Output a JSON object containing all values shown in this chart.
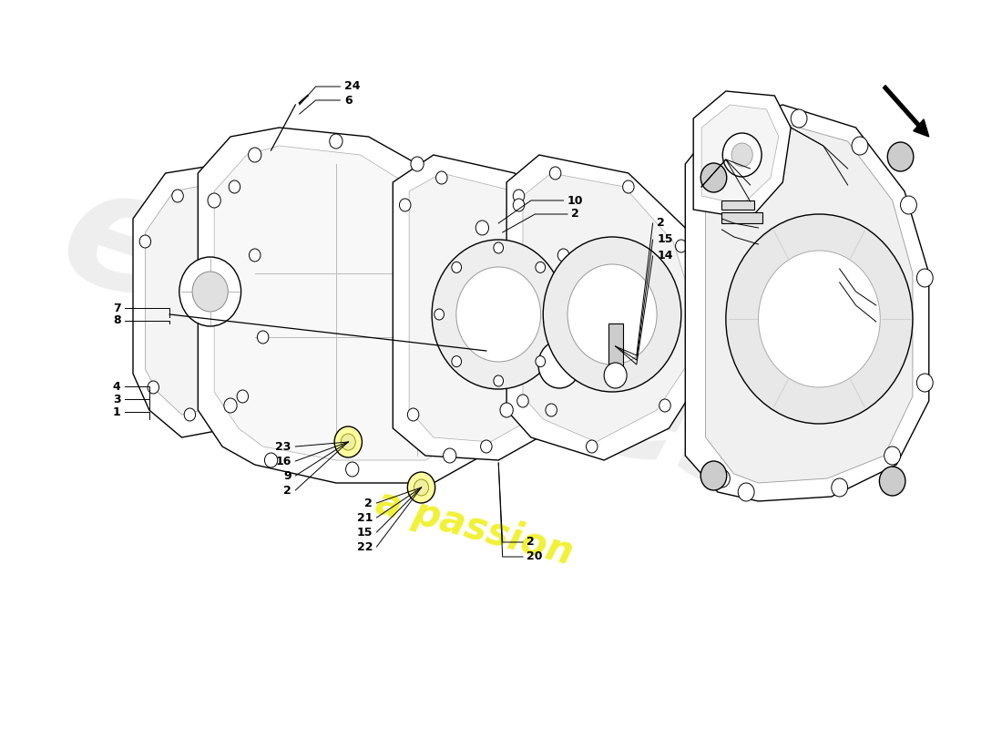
{
  "background_color": "#ffffff",
  "line_color": "#000000",
  "watermark_euros_color": "#e0e0e0",
  "watermark_passion_color": "#f0f020",
  "label_fontsize": 9,
  "label_color": "#000000"
}
